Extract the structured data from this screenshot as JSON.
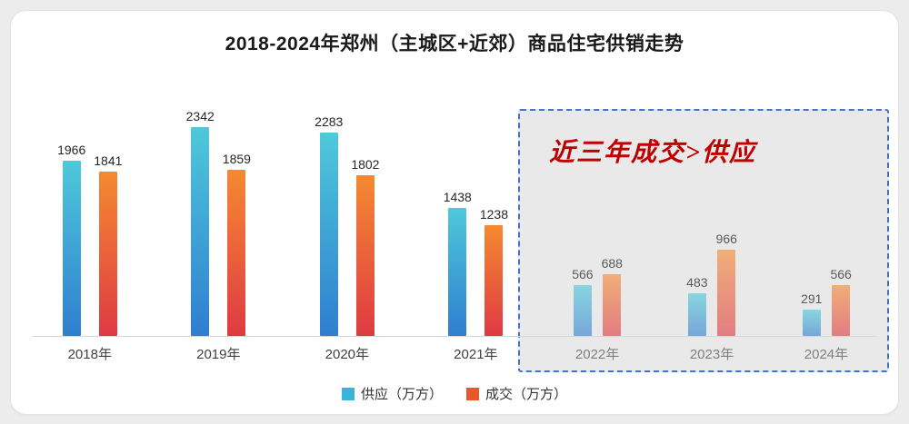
{
  "chart_data": {
    "type": "bar",
    "title": "2018-2024年郑州（主城区+近郊）商品住宅供销走势",
    "categories": [
      "2018年",
      "2019年",
      "2020年",
      "2021年",
      "2022年",
      "2023年",
      "2024年"
    ],
    "series": [
      {
        "name": "供应（万方）",
        "values": [
          1966,
          2342,
          2283,
          1438,
          566,
          483,
          291
        ],
        "color_top": "#4ec9da",
        "color_bottom": "#2f7ed0",
        "legend_color": "#39b4d8"
      },
      {
        "name": "成交（万方）",
        "values": [
          1841,
          1859,
          1802,
          1238,
          688,
          966,
          566
        ],
        "color_top": "#f58a31",
        "color_bottom": "#de3a43",
        "legend_color": "#e7582d"
      }
    ],
    "ylim": [
      0,
      2400
    ],
    "grid": false,
    "legend_position": "bottom",
    "highlight": {
      "categories": [
        "2022年",
        "2023年",
        "2024年"
      ],
      "label": "近三年成交>供应",
      "border_color": "#4472c4",
      "fill_color": "#e9e9e9",
      "text_color": "#c00000"
    }
  }
}
